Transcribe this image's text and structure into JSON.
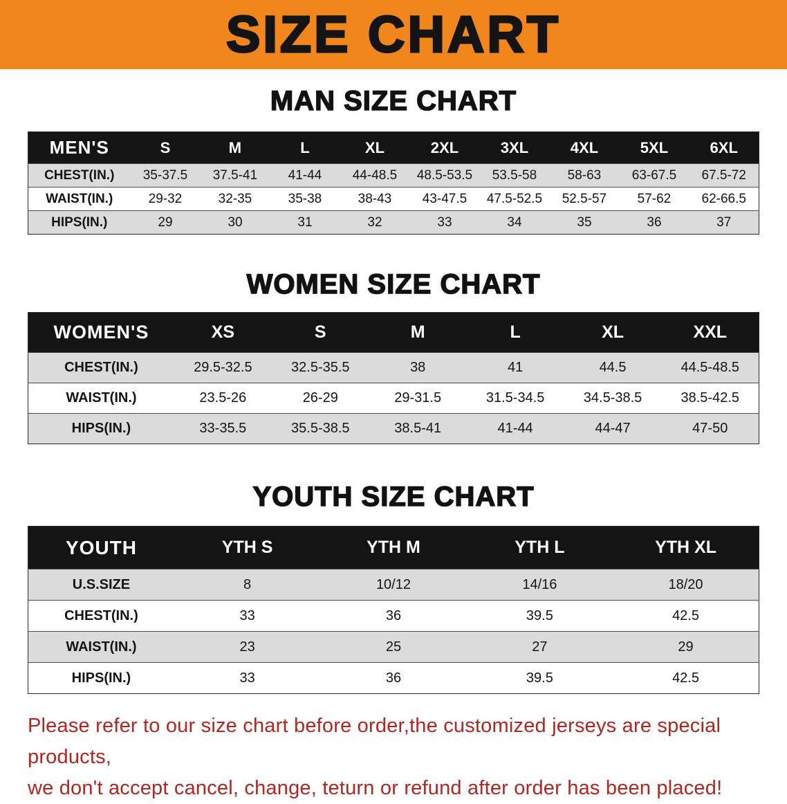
{
  "banner": {
    "title": "SIZE CHART",
    "bg_color": "#F1861C",
    "text_color": "#141414"
  },
  "colors": {
    "table_header_bg": "#141414",
    "table_header_text": "#FFFFFF",
    "row_stripe": "#DBDBDB",
    "note_text": "#B3251E"
  },
  "chart_data": [
    {
      "type": "table",
      "title": "MAN SIZE CHART",
      "header": [
        "MEN'S",
        "S",
        "M",
        "L",
        "XL",
        "2XL",
        "3XL",
        "4XL",
        "5XL",
        "6XL"
      ],
      "rows": [
        [
          "CHEST(IN.)",
          "35-37.5",
          "37.5-41",
          "41-44",
          "44-48.5",
          "48.5-53.5",
          "53.5-58",
          "58-63",
          "63-67.5",
          "67.5-72"
        ],
        [
          "WAIST(IN.)",
          "29-32",
          "32-35",
          "35-38",
          "38-43",
          "43-47.5",
          "47.5-52.5",
          "52.5-57",
          "57-62",
          "62-66.5"
        ],
        [
          "HIPS(IN.)",
          "29",
          "30",
          "31",
          "32",
          "33",
          "34",
          "35",
          "36",
          "37"
        ]
      ]
    },
    {
      "type": "table",
      "title": "WOMEN SIZE CHART",
      "header": [
        "WOMEN'S",
        "XS",
        "S",
        "M",
        "L",
        "XL",
        "XXL"
      ],
      "rows": [
        [
          "CHEST(IN.)",
          "29.5-32.5",
          "32.5-35.5",
          "38",
          "41",
          "44.5",
          "44.5-48.5"
        ],
        [
          "WAIST(IN.)",
          "23.5-26",
          "26-29",
          "29-31.5",
          "31.5-34.5",
          "34.5-38.5",
          "38.5-42.5"
        ],
        [
          "HIPS(IN.)",
          "33-35.5",
          "35.5-38.5",
          "38.5-41",
          "41-44",
          "44-47",
          "47-50"
        ]
      ]
    },
    {
      "type": "table",
      "title": "YOUTH SIZE CHART",
      "header": [
        "YOUTH",
        "YTH S",
        "YTH M",
        "YTH L",
        "YTH XL"
      ],
      "rows": [
        [
          "U.S.SIZE",
          "8",
          "10/12",
          "14/16",
          "18/20"
        ],
        [
          "CHEST(IN.)",
          "33",
          "36",
          "39.5",
          "42.5"
        ],
        [
          "WAIST(IN.)",
          "23",
          "25",
          "27",
          "29"
        ],
        [
          "HIPS(IN.)",
          "33",
          "36",
          "39.5",
          "42.5"
        ]
      ]
    }
  ],
  "note": {
    "line1": "Please refer to our size chart before order,the customized jerseys are special products,",
    "line2": "we don't accept cancel, change, teturn or refund after order has been placed!"
  }
}
